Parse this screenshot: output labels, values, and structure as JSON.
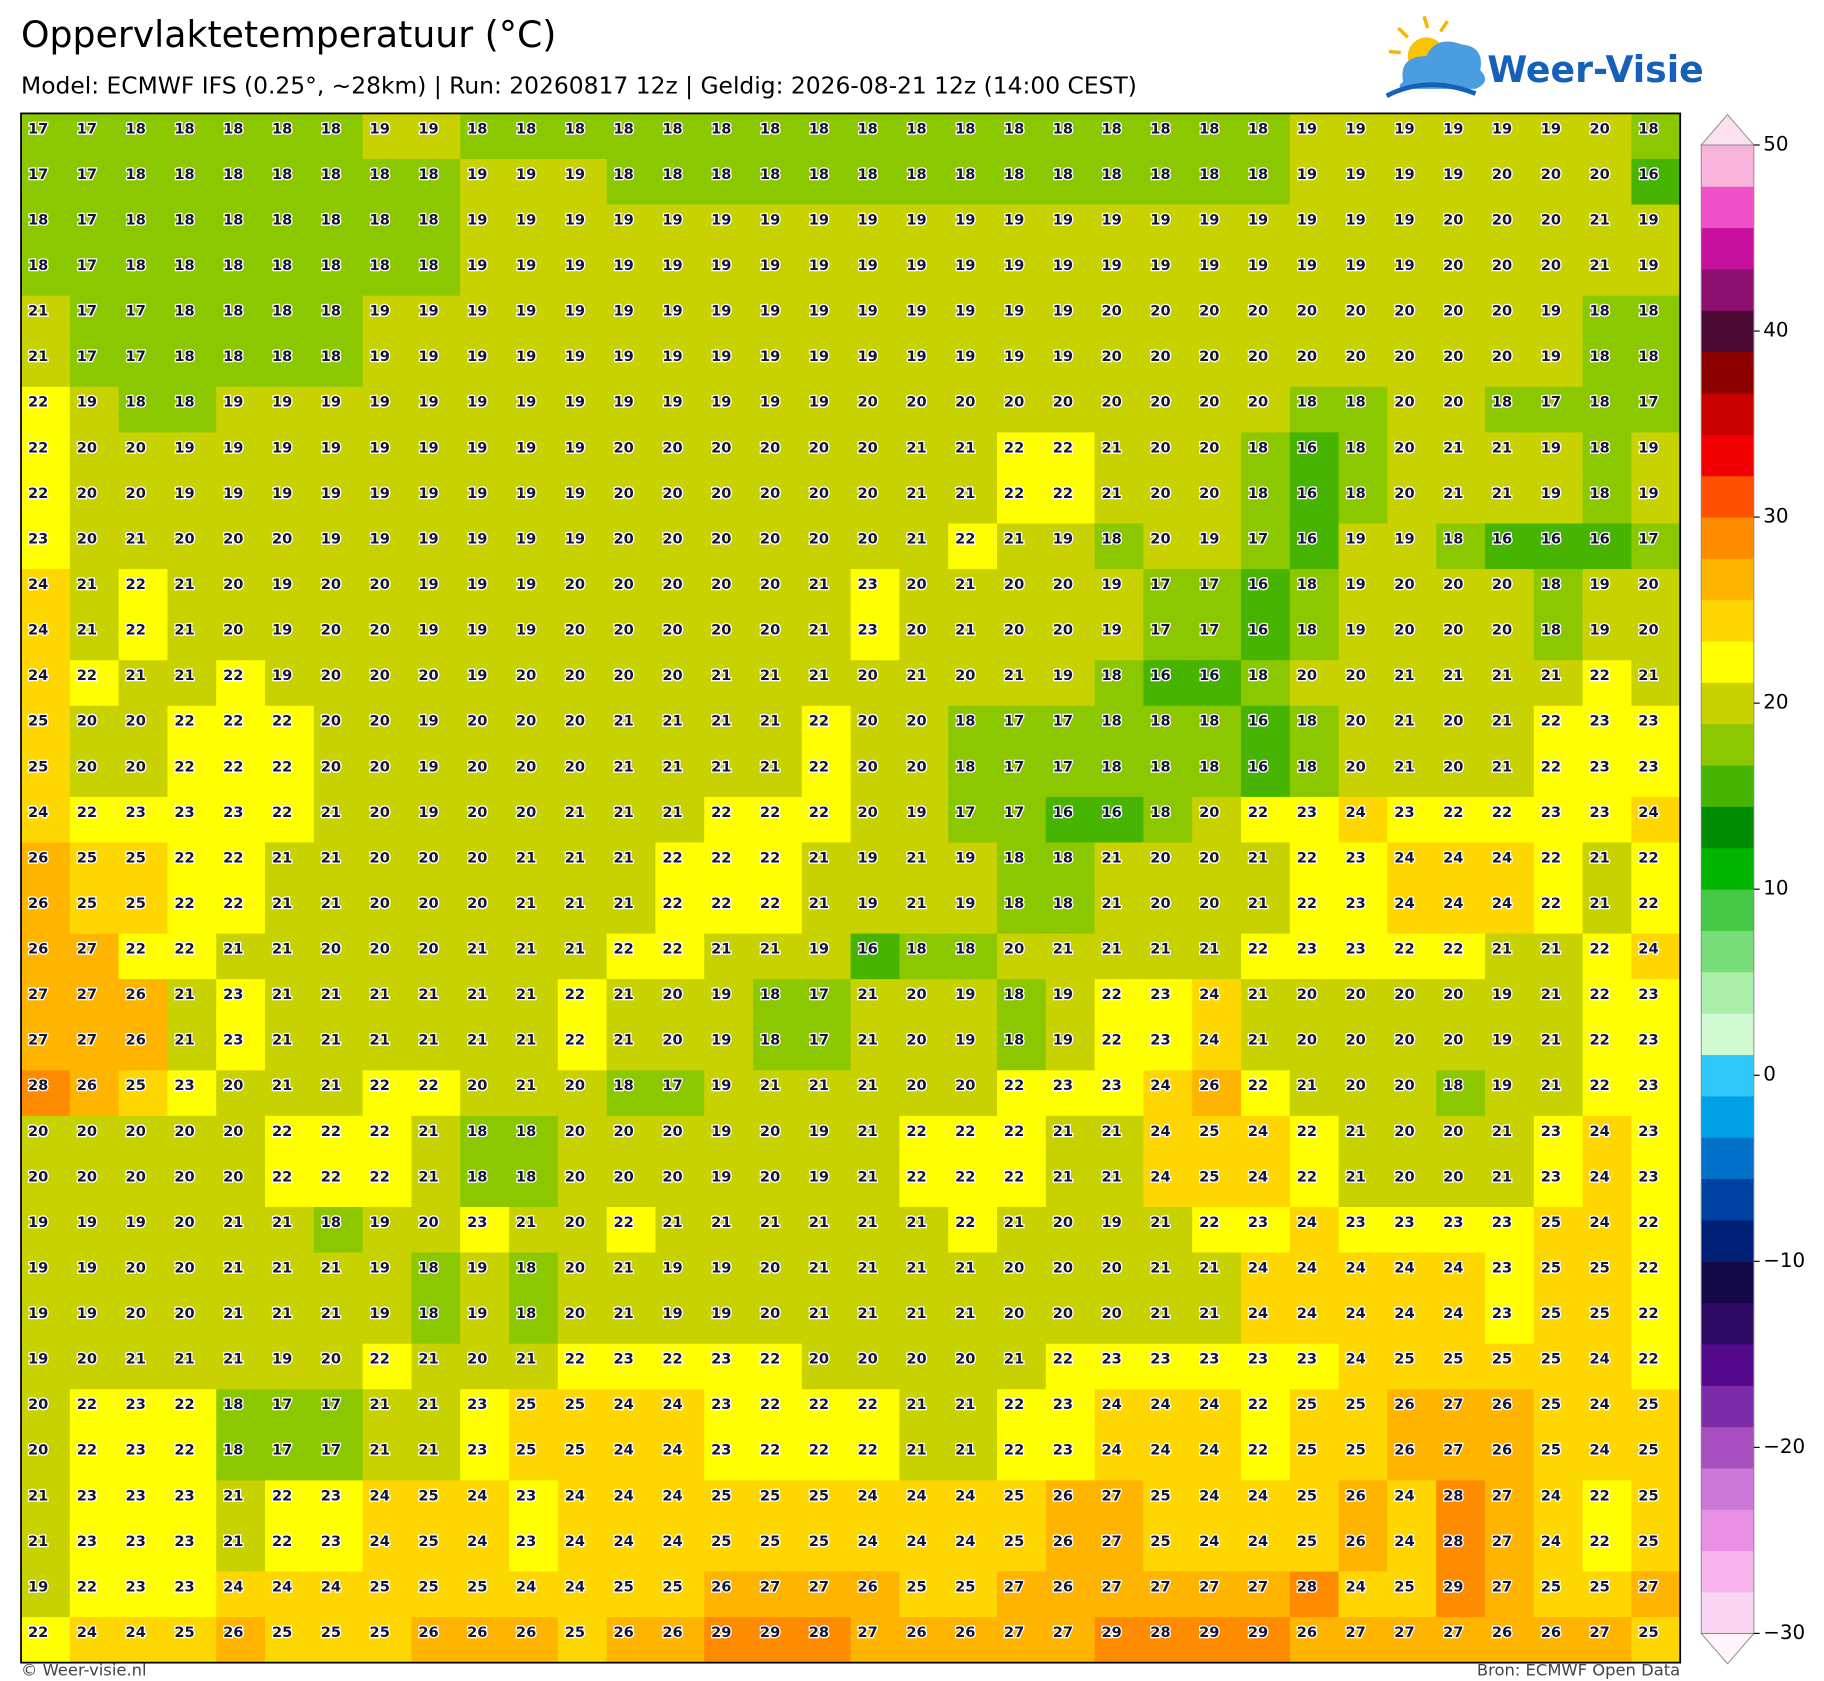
{
  "header": {
    "title": "Oppervlaktetemperatuur (°C)",
    "subtitle": "Model: ECMWF IFS (0.25°, ~28km)  |  Run: 20260817 12z  |  Geldig: 2026-08-21 12z (14:00 CEST)"
  },
  "logo": {
    "text": "Weer-Visie"
  },
  "map": {
    "values": [
      [
        17,
        17,
        18,
        18,
        18,
        18,
        18,
        19,
        19,
        18,
        18,
        18,
        18,
        18,
        18,
        18,
        18,
        18,
        18,
        18,
        18,
        18,
        18,
        18,
        18,
        18,
        19,
        19,
        19,
        19,
        19,
        19,
        20,
        18
      ],
      [
        17,
        17,
        18,
        18,
        18,
        18,
        18,
        18,
        18,
        19,
        19,
        19,
        18,
        18,
        18,
        18,
        18,
        18,
        18,
        18,
        18,
        18,
        18,
        18,
        18,
        18,
        19,
        19,
        19,
        19,
        20,
        20,
        20,
        16
      ],
      [
        18,
        17,
        18,
        18,
        18,
        18,
        18,
        18,
        18,
        19,
        19,
        19,
        19,
        19,
        19,
        19,
        19,
        19,
        19,
        19,
        19,
        19,
        19,
        19,
        19,
        19,
        19,
        19,
        19,
        20,
        20,
        20,
        21,
        19
      ],
      [
        18,
        17,
        18,
        18,
        18,
        18,
        18,
        18,
        18,
        19,
        19,
        19,
        19,
        19,
        19,
        19,
        19,
        19,
        19,
        19,
        19,
        19,
        19,
        19,
        19,
        19,
        19,
        19,
        19,
        20,
        20,
        20,
        21,
        19
      ],
      [
        21,
        17,
        17,
        18,
        18,
        18,
        18,
        19,
        19,
        19,
        19,
        19,
        19,
        19,
        19,
        19,
        19,
        19,
        19,
        19,
        19,
        19,
        20,
        20,
        20,
        20,
        20,
        20,
        20,
        20,
        20,
        19,
        18,
        18
      ],
      [
        21,
        17,
        17,
        18,
        18,
        18,
        18,
        19,
        19,
        19,
        19,
        19,
        19,
        19,
        19,
        19,
        19,
        19,
        19,
        19,
        19,
        19,
        20,
        20,
        20,
        20,
        20,
        20,
        20,
        20,
        20,
        19,
        18,
        18
      ],
      [
        22,
        19,
        18,
        18,
        19,
        19,
        19,
        19,
        19,
        19,
        19,
        19,
        19,
        19,
        19,
        19,
        19,
        20,
        20,
        20,
        20,
        20,
        20,
        20,
        20,
        20,
        18,
        18,
        20,
        20,
        18,
        17,
        18,
        17
      ],
      [
        22,
        20,
        20,
        19,
        19,
        19,
        19,
        19,
        19,
        19,
        19,
        19,
        20,
        20,
        20,
        20,
        20,
        20,
        21,
        21,
        22,
        22,
        21,
        20,
        20,
        18,
        16,
        18,
        20,
        21,
        21,
        19,
        18,
        19
      ],
      [
        22,
        20,
        20,
        19,
        19,
        19,
        19,
        19,
        19,
        19,
        19,
        19,
        20,
        20,
        20,
        20,
        20,
        20,
        21,
        21,
        22,
        22,
        21,
        20,
        20,
        18,
        16,
        18,
        20,
        21,
        21,
        19,
        18,
        19
      ],
      [
        23,
        20,
        21,
        20,
        20,
        20,
        19,
        19,
        19,
        19,
        19,
        19,
        20,
        20,
        20,
        20,
        20,
        20,
        21,
        22,
        21,
        19,
        18,
        20,
        19,
        17,
        16,
        19,
        19,
        18,
        16,
        16,
        16,
        17
      ],
      [
        24,
        21,
        22,
        21,
        20,
        19,
        20,
        20,
        19,
        19,
        19,
        20,
        20,
        20,
        20,
        20,
        21,
        23,
        20,
        21,
        20,
        20,
        19,
        17,
        17,
        16,
        18,
        19,
        20,
        20,
        20,
        18,
        19,
        20
      ],
      [
        24,
        21,
        22,
        21,
        20,
        19,
        20,
        20,
        19,
        19,
        19,
        20,
        20,
        20,
        20,
        20,
        21,
        23,
        20,
        21,
        20,
        20,
        19,
        17,
        17,
        16,
        18,
        19,
        20,
        20,
        20,
        18,
        19,
        20
      ],
      [
        24,
        22,
        21,
        21,
        22,
        19,
        20,
        20,
        20,
        19,
        20,
        20,
        20,
        20,
        21,
        21,
        21,
        20,
        21,
        20,
        21,
        19,
        18,
        16,
        16,
        18,
        20,
        20,
        21,
        21,
        21,
        21,
        22,
        21
      ],
      [
        25,
        20,
        20,
        22,
        22,
        22,
        20,
        20,
        19,
        20,
        20,
        20,
        21,
        21,
        21,
        21,
        22,
        20,
        20,
        18,
        17,
        17,
        18,
        18,
        18,
        16,
        18,
        20,
        21,
        20,
        21,
        22,
        23,
        23
      ],
      [
        25,
        20,
        20,
        22,
        22,
        22,
        20,
        20,
        19,
        20,
        20,
        20,
        21,
        21,
        21,
        21,
        22,
        20,
        20,
        18,
        17,
        17,
        18,
        18,
        18,
        16,
        18,
        20,
        21,
        20,
        21,
        22,
        23,
        23
      ],
      [
        24,
        22,
        23,
        23,
        23,
        22,
        21,
        20,
        19,
        20,
        20,
        21,
        21,
        21,
        22,
        22,
        22,
        20,
        19,
        17,
        17,
        16,
        16,
        18,
        20,
        22,
        23,
        24,
        23,
        22,
        22,
        23,
        23,
        24
      ],
      [
        26,
        25,
        25,
        22,
        22,
        21,
        21,
        20,
        20,
        20,
        21,
        21,
        21,
        22,
        22,
        22,
        21,
        19,
        21,
        19,
        18,
        18,
        21,
        20,
        20,
        21,
        22,
        23,
        24,
        24,
        24,
        22,
        21,
        22
      ],
      [
        26,
        25,
        25,
        22,
        22,
        21,
        21,
        20,
        20,
        20,
        21,
        21,
        21,
        22,
        22,
        22,
        21,
        19,
        21,
        19,
        18,
        18,
        21,
        20,
        20,
        21,
        22,
        23,
        24,
        24,
        24,
        22,
        21,
        22
      ],
      [
        26,
        27,
        22,
        22,
        21,
        21,
        20,
        20,
        20,
        21,
        21,
        21,
        22,
        22,
        21,
        21,
        19,
        16,
        18,
        18,
        20,
        21,
        21,
        21,
        21,
        22,
        23,
        23,
        22,
        22,
        21,
        21,
        22,
        24
      ],
      [
        27,
        27,
        26,
        21,
        23,
        21,
        21,
        21,
        21,
        21,
        21,
        22,
        21,
        20,
        19,
        18,
        17,
        21,
        20,
        19,
        18,
        19,
        22,
        23,
        24,
        21,
        20,
        20,
        20,
        20,
        19,
        21,
        22,
        23
      ],
      [
        27,
        27,
        26,
        21,
        23,
        21,
        21,
        21,
        21,
        21,
        21,
        22,
        21,
        20,
        19,
        18,
        17,
        21,
        20,
        19,
        18,
        19,
        22,
        23,
        24,
        21,
        20,
        20,
        20,
        20,
        19,
        21,
        22,
        23
      ],
      [
        28,
        26,
        25,
        23,
        20,
        21,
        21,
        22,
        22,
        20,
        21,
        20,
        18,
        17,
        19,
        21,
        21,
        21,
        20,
        20,
        22,
        23,
        23,
        24,
        26,
        22,
        21,
        20,
        20,
        18,
        19,
        21,
        22,
        23
      ],
      [
        20,
        20,
        20,
        20,
        20,
        22,
        22,
        22,
        21,
        18,
        18,
        20,
        20,
        20,
        19,
        20,
        19,
        21,
        22,
        22,
        22,
        21,
        21,
        24,
        25,
        24,
        22,
        21,
        20,
        20,
        21,
        23,
        24,
        23
      ],
      [
        20,
        20,
        20,
        20,
        20,
        22,
        22,
        22,
        21,
        18,
        18,
        20,
        20,
        20,
        19,
        20,
        19,
        21,
        22,
        22,
        22,
        21,
        21,
        24,
        25,
        24,
        22,
        21,
        20,
        20,
        21,
        23,
        24,
        23
      ],
      [
        19,
        19,
        19,
        20,
        21,
        21,
        18,
        19,
        20,
        23,
        21,
        20,
        22,
        21,
        21,
        21,
        21,
        21,
        21,
        22,
        21,
        20,
        19,
        21,
        22,
        23,
        24,
        23,
        23,
        23,
        23,
        25,
        24,
        22
      ],
      [
        19,
        19,
        20,
        20,
        21,
        21,
        21,
        19,
        18,
        19,
        18,
        20,
        21,
        19,
        19,
        20,
        21,
        21,
        21,
        21,
        20,
        20,
        20,
        21,
        21,
        24,
        24,
        24,
        24,
        24,
        23,
        25,
        25,
        22
      ],
      [
        19,
        19,
        20,
        20,
        21,
        21,
        21,
        19,
        18,
        19,
        18,
        20,
        21,
        19,
        19,
        20,
        21,
        21,
        21,
        21,
        20,
        20,
        20,
        21,
        21,
        24,
        24,
        24,
        24,
        24,
        23,
        25,
        25,
        22
      ],
      [
        19,
        20,
        21,
        21,
        21,
        19,
        20,
        22,
        21,
        20,
        21,
        22,
        23,
        22,
        23,
        22,
        20,
        20,
        20,
        20,
        21,
        22,
        23,
        23,
        23,
        23,
        23,
        24,
        25,
        25,
        25,
        25,
        24,
        22
      ],
      [
        20,
        22,
        23,
        22,
        18,
        17,
        17,
        21,
        21,
        23,
        25,
        25,
        24,
        24,
        23,
        22,
        22,
        22,
        21,
        21,
        22,
        23,
        24,
        24,
        24,
        22,
        25,
        25,
        26,
        27,
        26,
        25,
        24,
        25
      ],
      [
        20,
        22,
        23,
        22,
        18,
        17,
        17,
        21,
        21,
        23,
        25,
        25,
        24,
        24,
        23,
        22,
        22,
        22,
        21,
        21,
        22,
        23,
        24,
        24,
        24,
        22,
        25,
        25,
        26,
        27,
        26,
        25,
        24,
        25
      ],
      [
        21,
        23,
        23,
        23,
        21,
        22,
        23,
        24,
        25,
        24,
        23,
        24,
        24,
        24,
        25,
        25,
        25,
        24,
        24,
        24,
        25,
        26,
        27,
        25,
        24,
        24,
        25,
        26,
        24,
        28,
        27,
        24,
        22,
        25
      ],
      [
        21,
        23,
        23,
        23,
        21,
        22,
        23,
        24,
        25,
        24,
        23,
        24,
        24,
        24,
        25,
        25,
        25,
        24,
        24,
        24,
        25,
        26,
        27,
        25,
        24,
        24,
        25,
        26,
        24,
        28,
        27,
        24,
        22,
        25
      ],
      [
        19,
        22,
        23,
        23,
        24,
        24,
        24,
        25,
        25,
        25,
        24,
        24,
        25,
        25,
        26,
        27,
        27,
        26,
        25,
        25,
        27,
        26,
        27,
        27,
        27,
        27,
        28,
        24,
        25,
        29,
        27,
        25,
        25,
        27
      ],
      [
        22,
        24,
        24,
        25,
        26,
        25,
        25,
        25,
        26,
        26,
        26,
        25,
        26,
        26,
        29,
        29,
        28,
        27,
        26,
        26,
        27,
        27,
        29,
        28,
        29,
        29,
        26,
        27,
        27,
        27,
        26,
        26,
        27,
        25
      ]
    ]
  },
  "colorbar": {
    "lim": [
      -30,
      50
    ],
    "under": "#fff4fb",
    "over": "#fde0f0",
    "colors": [
      "#fbd6f2",
      "#f8b4ec",
      "#e890e4",
      "#cc78d8",
      "#a850c0",
      "#7c2ca8",
      "#54088c",
      "#2c0a64",
      "#140a48",
      "#002078",
      "#0040a0",
      "#0070c8",
      "#00a0e6",
      "#30c8f8",
      "#d2fad2",
      "#aaeeaa",
      "#78dc78",
      "#46c846",
      "#00b400",
      "#008c00",
      "#46b400",
      "#8cc800",
      "#c8d200",
      "#ffff00",
      "#ffd700",
      "#ffb400",
      "#ff8c00",
      "#ff5000",
      "#f00000",
      "#c80000",
      "#8c0000",
      "#4c0a32",
      "#8c1070",
      "#c8109f",
      "#f050c8",
      "#f9b4dc"
    ],
    "ticks": [
      {
        "value": -30,
        "label": "−30"
      },
      {
        "value": -20,
        "label": "−20"
      },
      {
        "value": -10,
        "label": "−10"
      },
      0,
      10,
      20,
      30,
      40,
      50
    ]
  },
  "footer": {
    "left": "© Weer-visie.nl",
    "right": "Bron: ECMWF Open Data"
  }
}
